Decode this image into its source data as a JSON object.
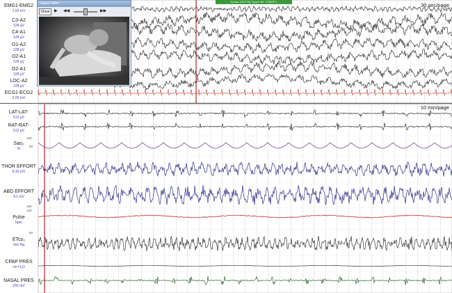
{
  "cursor_info": "Cursor: 03:37:56, Epoch: 89 - STAGE 2",
  "video": {
    "title": "Digital Video",
    "close_label": "Close",
    "icons": [
      "play-icon",
      "rewind-icon",
      "fast-forward-icon"
    ]
  },
  "top_panel": {
    "timescale": "30 sec/page",
    "channels": [
      {
        "name": "EMG1-EMG2",
        "unit": "1.02 mV"
      },
      {
        "name": "C3-A2",
        "unit": "128 μV"
      },
      {
        "name": "C4-A1",
        "unit": "128 μV"
      },
      {
        "name": "O1-A2",
        "unit": "128 μV"
      },
      {
        "name": "O2-A1",
        "unit": "128 μV"
      },
      {
        "name": "O2-A1",
        "unit": "128 μV"
      },
      {
        "name": "LOC-A2",
        "unit": "128 μV"
      },
      {
        "name": "ECG1-ECG2",
        "unit": "2.05 mV"
      }
    ]
  },
  "bottom_panel": {
    "timescale": "10 min/page",
    "channels": [
      {
        "name": "LAT-LAT-",
        "unit": "512 μV"
      },
      {
        "name": "RAT-RAT-",
        "unit": "512 μV"
      },
      {
        "name": "Sao₂",
        "unit": "%"
      },
      {
        "name": "THOR EFFORT",
        "unit": "8.19 mV"
      },
      {
        "name": "ABD EFFORT",
        "unit": "4.1 mV"
      },
      {
        "name": "Pulse",
        "unit": "bpm"
      },
      {
        "name": "ETco₂",
        "unit": "mm Hg"
      },
      {
        "name": "CPAP PRES",
        "unit": "cm H₂O"
      },
      {
        "name": "NASAL PRES",
        "unit": "250 mV"
      }
    ],
    "scale_marks": [
      "100",
      "50",
      "150",
      "120",
      "60"
    ]
  },
  "colors": {
    "eeg": "#151515",
    "ecg": "#c0392b",
    "effort": "#2c2c8a",
    "pulse": "#c0392b",
    "sao2": "#7d3f98",
    "nasal": "#2f6b2f",
    "cursor_line": "#b22222",
    "grid": "#d6d6d6",
    "label_unit": "#3b3bb5"
  }
}
